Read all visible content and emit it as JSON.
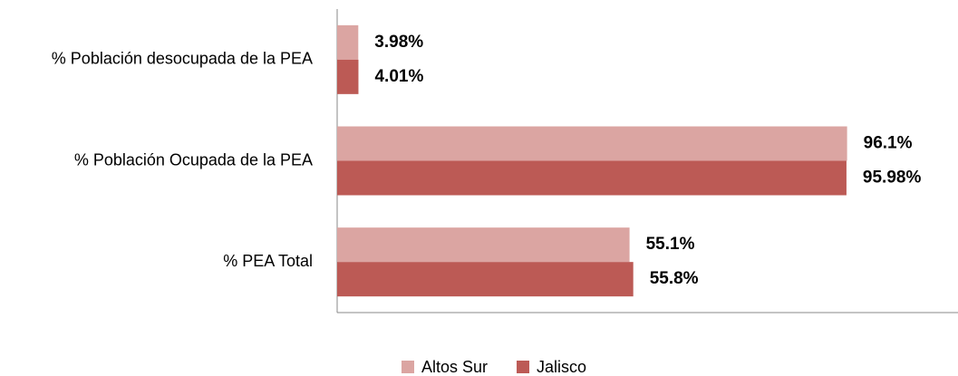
{
  "chart_data": {
    "type": "hbar",
    "categories": [
      "% Población desocupada de la PEA",
      "% Población Ocupada de la PEA",
      "% PEA Total"
    ],
    "series": [
      {
        "name": "Altos Sur",
        "color": "#dba5a2",
        "values": [
          3.98,
          96.1,
          55.1
        ],
        "value_labels": [
          "3.98%",
          "96.1%",
          "55.1%"
        ]
      },
      {
        "name": "Jalisco",
        "color": "#bc5a55",
        "values": [
          4.01,
          95.98,
          55.8
        ],
        "value_labels": [
          "4.01%",
          "95.98%",
          "55.8%"
        ]
      }
    ],
    "xlim": [
      0,
      117
    ],
    "legend": "bottom"
  }
}
